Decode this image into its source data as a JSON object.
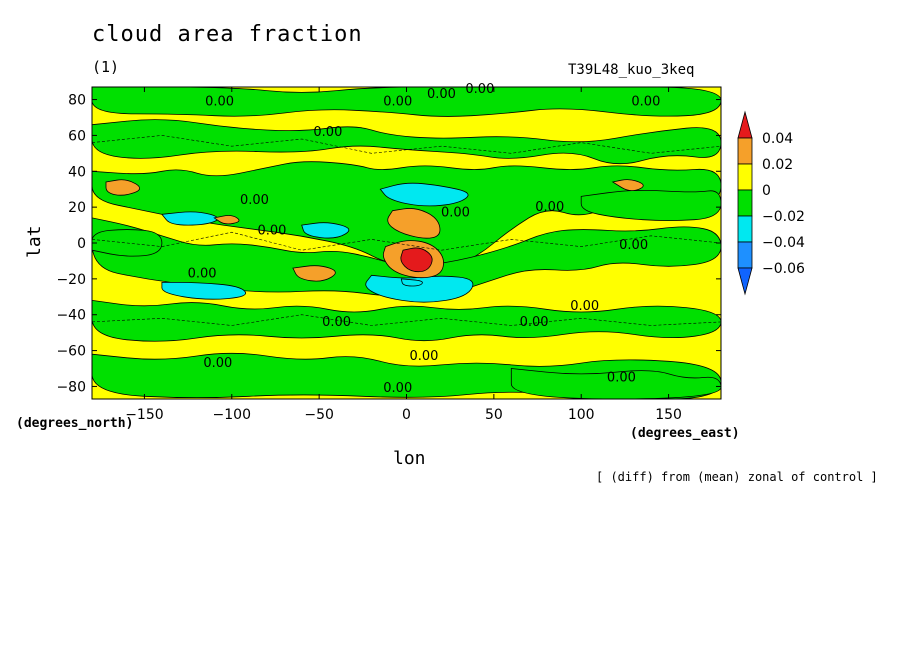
{
  "chart_data": {
    "type": "heatmap",
    "title": "cloud area fraction",
    "subtitle": "(1)",
    "run_label": "T39L48_kuo_3keq",
    "xlabel": "lon",
    "ylabel": "lat",
    "x_units": "(degrees_east)",
    "y_units": "(degrees_north)",
    "note": "[ (diff) from (mean) zonal of control ]",
    "xlim": [
      -180,
      180
    ],
    "ylim": [
      -87,
      87
    ],
    "x_ticks": [
      -150,
      -100,
      -50,
      0,
      50,
      100,
      150
    ],
    "y_ticks": [
      80,
      60,
      40,
      20,
      0,
      -20,
      -40,
      -60,
      -80
    ],
    "contour_levels": [
      -0.06,
      -0.04,
      -0.02,
      0,
      0.02,
      0.04
    ],
    "colorbar": {
      "labels": [
        "0.04",
        "0.02",
        "0",
        "−0.02",
        "−0.04",
        "−0.06"
      ],
      "colors": [
        "#e41a1c",
        "#f5a02a",
        "#ffff00",
        "#00e000",
        "#00e8f0",
        "#1e90ff",
        "#1064ff"
      ]
    },
    "contour_labels": [
      {
        "text": "0.00",
        "lon": -107,
        "lat": 79
      },
      {
        "text": "0.00",
        "lon": -5,
        "lat": 79
      },
      {
        "text": "0.00",
        "lon": 20,
        "lat": 83
      },
      {
        "text": "0.00",
        "lon": 42,
        "lat": 86
      },
      {
        "text": "0.00",
        "lon": 137,
        "lat": 79
      },
      {
        "text": "0.00",
        "lon": -45,
        "lat": 62
      },
      {
        "text": "0.00",
        "lon": -87,
        "lat": 24
      },
      {
        "text": "0.00",
        "lon": -77,
        "lat": 7
      },
      {
        "text": "0.00",
        "lon": 28,
        "lat": 17
      },
      {
        "text": "0.00",
        "lon": 82,
        "lat": 20
      },
      {
        "text": "0.00",
        "lon": 130,
        "lat": -1
      },
      {
        "text": "0.00",
        "lon": -117,
        "lat": -17
      },
      {
        "text": "0.00",
        "lon": 102,
        "lat": -35
      },
      {
        "text": "0.00",
        "lon": -40,
        "lat": -44
      },
      {
        "text": "0.00",
        "lon": 73,
        "lat": -44
      },
      {
        "text": "0.00",
        "lon": -108,
        "lat": -67
      },
      {
        "text": "0.00",
        "lon": 10,
        "lat": -63
      },
      {
        "text": "0.00",
        "lon": 123,
        "lat": -75
      },
      {
        "text": "0.00",
        "lon": -5,
        "lat": -81
      }
    ],
    "features": [
      {
        "kind": "positive_max",
        "value": 0.04,
        "lon": 6,
        "lat": -8,
        "note": "red core"
      },
      {
        "kind": "positive",
        "value": 0.02,
        "lon": 8,
        "lat": 8
      },
      {
        "kind": "positive",
        "value": 0.02,
        "lon": 2,
        "lat": -11
      },
      {
        "kind": "positive",
        "value": 0.02,
        "lon": -50,
        "lat": -18
      },
      {
        "kind": "positive",
        "value": 0.02,
        "lon": -163,
        "lat": 30
      },
      {
        "kind": "positive",
        "value": 0.02,
        "lon": 128,
        "lat": 32
      },
      {
        "kind": "negative",
        "value": -0.04,
        "lon": 17,
        "lat": -26,
        "note": "southern cyan band"
      },
      {
        "kind": "negative",
        "value": -0.04,
        "lon": -115,
        "lat": -27
      },
      {
        "kind": "negative",
        "value": -0.04,
        "lon": 8,
        "lat": 27,
        "note": "northern cyan band"
      },
      {
        "kind": "negative",
        "value": -0.04,
        "lon": -125,
        "lat": 15
      },
      {
        "kind": "negative",
        "value": -0.04,
        "lon": -42,
        "lat": 7
      }
    ]
  }
}
